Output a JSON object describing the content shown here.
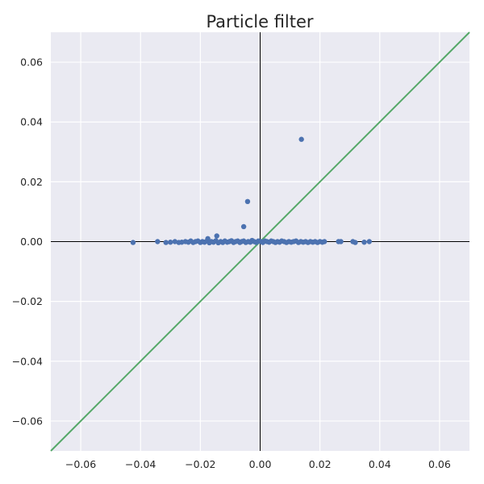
{
  "chart_data": {
    "type": "scatter",
    "title": "Particle filter",
    "xlabel": "",
    "ylabel": "",
    "xlim": [
      -0.07,
      0.07
    ],
    "ylim": [
      -0.07,
      0.07
    ],
    "grid": true,
    "x_ticks": [
      -0.06,
      -0.04,
      -0.02,
      0.0,
      0.02,
      0.04,
      0.06
    ],
    "x_tick_labels": [
      "−0.06",
      "−0.04",
      "−0.02",
      "0.00",
      "0.02",
      "0.04",
      "0.06"
    ],
    "y_ticks": [
      0.06,
      0.04,
      0.02,
      0.0,
      -0.02,
      -0.04,
      -0.06
    ],
    "y_tick_labels": [
      "0.06",
      "0.04",
      "0.02",
      "0.00",
      "−0.02",
      "−0.04",
      "−0.06"
    ],
    "reference_lines": {
      "diagonal": {
        "from": [
          -0.07,
          -0.07
        ],
        "to": [
          0.07,
          0.07
        ],
        "color": "#55a868"
      },
      "horizontal_axis_line": {
        "y": 0.0,
        "color": "#000000"
      },
      "vertical_axis_line": {
        "x": 0.0,
        "color": "#000000"
      }
    },
    "colors": {
      "points": "#4c72b0",
      "background": "#eaeaf2",
      "grid": "#ffffff"
    },
    "points": [
      {
        "x": -0.0425,
        "y": -0.0003
      },
      {
        "x": -0.0343,
        "y": 0.0
      },
      {
        "x": -0.0315,
        "y": -0.0003
      },
      {
        "x": -0.03,
        "y": -0.0002
      },
      {
        "x": -0.0285,
        "y": 0.0
      },
      {
        "x": -0.0272,
        "y": -0.0003
      },
      {
        "x": -0.0262,
        "y": -0.0002
      },
      {
        "x": -0.025,
        "y": 0.0
      },
      {
        "x": -0.024,
        "y": -0.0002
      },
      {
        "x": -0.0232,
        "y": 0.0002
      },
      {
        "x": -0.0224,
        "y": -0.0003
      },
      {
        "x": -0.0216,
        "y": 0.0
      },
      {
        "x": -0.0208,
        "y": 0.0002
      },
      {
        "x": -0.02,
        "y": -0.0003
      },
      {
        "x": -0.0193,
        "y": 0.0
      },
      {
        "x": -0.0186,
        "y": -0.0002
      },
      {
        "x": -0.0178,
        "y": 0.0002
      },
      {
        "x": -0.0175,
        "y": 0.001
      },
      {
        "x": -0.017,
        "y": -0.0004
      },
      {
        "x": -0.0163,
        "y": 0.0
      },
      {
        "x": -0.0156,
        "y": -0.0002
      },
      {
        "x": -0.0148,
        "y": 0.0003
      },
      {
        "x": -0.0145,
        "y": 0.0019
      },
      {
        "x": -0.014,
        "y": -0.0004
      },
      {
        "x": -0.0132,
        "y": 0.0
      },
      {
        "x": -0.0125,
        "y": -0.0003
      },
      {
        "x": -0.0118,
        "y": 0.0002
      },
      {
        "x": -0.011,
        "y": -0.0002
      },
      {
        "x": -0.0103,
        "y": 0.0
      },
      {
        "x": -0.0096,
        "y": 0.0003
      },
      {
        "x": -0.0089,
        "y": -0.0003
      },
      {
        "x": -0.0082,
        "y": 0.0
      },
      {
        "x": -0.0075,
        "y": 0.0002
      },
      {
        "x": -0.0068,
        "y": -0.0003
      },
      {
        "x": -0.0062,
        "y": 0.0
      },
      {
        "x": -0.0055,
        "y": 0.0002
      },
      {
        "x": -0.0055,
        "y": 0.005
      },
      {
        "x": -0.0048,
        "y": -0.0003
      },
      {
        "x": -0.0042,
        "y": 0.0134
      },
      {
        "x": -0.004,
        "y": 0.0
      },
      {
        "x": -0.0033,
        "y": -0.0002
      },
      {
        "x": -0.0027,
        "y": 0.0004
      },
      {
        "x": -0.002,
        "y": 0.0
      },
      {
        "x": -0.0013,
        "y": -0.0003
      },
      {
        "x": -0.0006,
        "y": 0.0002
      },
      {
        "x": 0.0002,
        "y": 0.0
      },
      {
        "x": 0.0009,
        "y": -0.0003
      },
      {
        "x": 0.0016,
        "y": 0.0002
      },
      {
        "x": 0.0023,
        "y": 0.0
      },
      {
        "x": 0.003,
        "y": -0.0002
      },
      {
        "x": 0.0037,
        "y": 0.0002
      },
      {
        "x": 0.0044,
        "y": 0.0
      },
      {
        "x": 0.0051,
        "y": -0.0003
      },
      {
        "x": 0.0058,
        "y": 0.0
      },
      {
        "x": 0.0065,
        "y": -0.0002
      },
      {
        "x": 0.0072,
        "y": 0.0002
      },
      {
        "x": 0.008,
        "y": 0.0
      },
      {
        "x": 0.0088,
        "y": -0.0003
      },
      {
        "x": 0.0096,
        "y": 0.0
      },
      {
        "x": 0.0104,
        "y": -0.0002
      },
      {
        "x": 0.0112,
        "y": 0.0
      },
      {
        "x": 0.012,
        "y": 0.0002
      },
      {
        "x": 0.0128,
        "y": -0.0003
      },
      {
        "x": 0.0136,
        "y": 0.0
      },
      {
        "x": 0.0138,
        "y": 0.0342
      },
      {
        "x": 0.0144,
        "y": -0.0002
      },
      {
        "x": 0.0152,
        "y": 0.0
      },
      {
        "x": 0.016,
        "y": -0.0003
      },
      {
        "x": 0.0168,
        "y": 0.0
      },
      {
        "x": 0.0176,
        "y": -0.0002
      },
      {
        "x": 0.0184,
        "y": 0.0
      },
      {
        "x": 0.0192,
        "y": -0.0003
      },
      {
        "x": 0.02,
        "y": 0.0
      },
      {
        "x": 0.0208,
        "y": -0.0002
      },
      {
        "x": 0.0215,
        "y": 0.0
      },
      {
        "x": 0.0262,
        "y": 0.0
      },
      {
        "x": 0.027,
        "y": 0.0
      },
      {
        "x": 0.031,
        "y": 0.0
      },
      {
        "x": 0.0318,
        "y": -0.0003
      },
      {
        "x": 0.0348,
        "y": -0.0002
      },
      {
        "x": 0.0365,
        "y": 0.0
      }
    ]
  }
}
